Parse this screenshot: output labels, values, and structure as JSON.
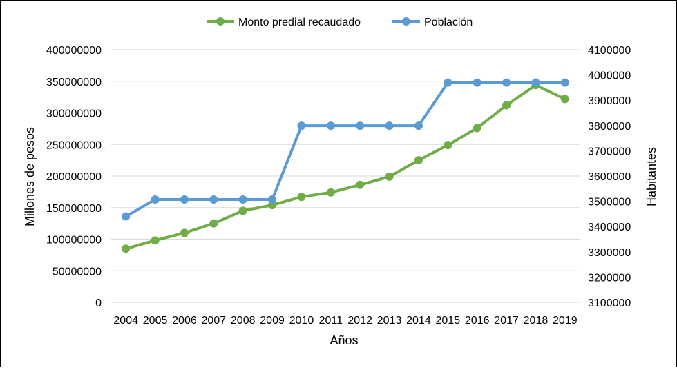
{
  "chart_data": {
    "type": "line",
    "title": "",
    "xlabel": "Años",
    "ylabel": "Millones de pesos",
    "y2label": "Habitantes",
    "categories": [
      "2004",
      "2005",
      "2006",
      "2007",
      "2008",
      "2009",
      "2010",
      "2011",
      "2012",
      "2013",
      "2014",
      "2015",
      "2016",
      "2017",
      "2018",
      "2019"
    ],
    "ylim": [
      0,
      400000000
    ],
    "yticks": [
      "0",
      "50000000",
      "100000000",
      "150000000",
      "200000000",
      "250000000",
      "300000000",
      "350000000",
      "400000000"
    ],
    "y2lim": [
      3100000,
      4100000
    ],
    "y2ticks": [
      "3100000",
      "3200000",
      "3300000",
      "3400000",
      "3500000",
      "3600000",
      "3700000",
      "3800000",
      "3900000",
      "4000000",
      "4100000"
    ],
    "grid": true,
    "legend_position": "top",
    "series": [
      {
        "name": "Monto predial recaudado",
        "axis": "left",
        "color": "#70AD47",
        "values": [
          85000000,
          98000000,
          110000000,
          125000000,
          145000000,
          154000000,
          167000000,
          174000000,
          186000000,
          199000000,
          225000000,
          249000000,
          276000000,
          312000000,
          344000000,
          322000000
        ]
      },
      {
        "name": "Población",
        "axis": "right",
        "color": "#5B9BD5",
        "values": [
          3440000,
          3507000,
          3507000,
          3507000,
          3507000,
          3507000,
          3799000,
          3799000,
          3799000,
          3799000,
          3799000,
          3970000,
          3970000,
          3970000,
          3970000,
          3970000
        ]
      }
    ]
  }
}
